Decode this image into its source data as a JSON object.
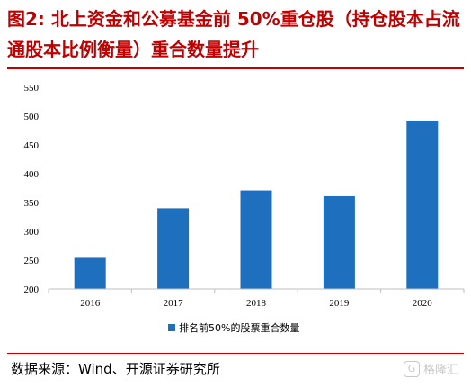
{
  "title": "图2:  北上资金和公募基金前 50%重仓股（持仓股本占流通股本比例衡量）重合数量提升",
  "source": "数据来源：Wind、开源证券研究所",
  "watermark": "格隆汇",
  "colors": {
    "bar": "#1f6fbf",
    "title": "#c00000",
    "axis": "#bfbfbf"
  },
  "chart_data": {
    "type": "bar",
    "categories": [
      "2016",
      "2017",
      "2018",
      "2019",
      "2020"
    ],
    "series": [
      {
        "name": "排名前50%的股票重合数量",
        "values": [
          254,
          340,
          371,
          361,
          492
        ]
      }
    ],
    "ylim": [
      200,
      550
    ],
    "yticks": [
      200,
      250,
      300,
      350,
      400,
      450,
      500,
      550
    ],
    "legend_position": "bottom"
  }
}
